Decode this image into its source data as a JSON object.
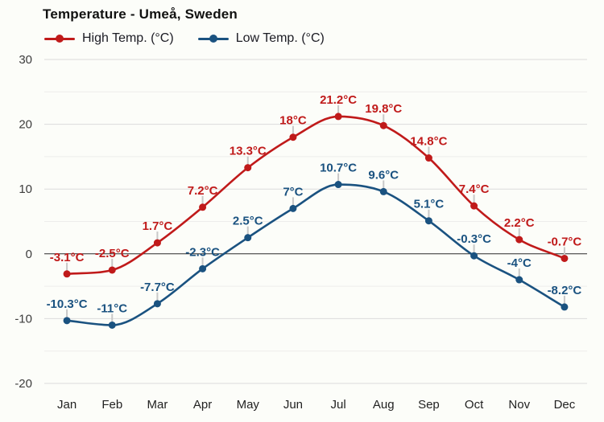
{
  "chart_data": {
    "type": "line",
    "title": "Temperature - Umeå, Sweden",
    "categories": [
      "Jan",
      "Feb",
      "Mar",
      "Apr",
      "May",
      "Jun",
      "Jul",
      "Aug",
      "Sep",
      "Oct",
      "Nov",
      "Dec"
    ],
    "series": [
      {
        "name": "High Temp. (°C)",
        "color": "#c01a1a",
        "values": [
          -3.1,
          -2.5,
          1.7,
          7.2,
          13.3,
          18,
          21.2,
          19.8,
          14.8,
          7.4,
          2.2,
          -0.7
        ],
        "labels": [
          "-3.1°C",
          "-2.5°C",
          "1.7°C",
          "7.2°C",
          "13.3°C",
          "18°C",
          "21.2°C",
          "19.8°C",
          "14.8°C",
          "7.4°C",
          "2.2°C",
          "-0.7°C"
        ]
      },
      {
        "name": "Low Temp. (°C)",
        "color": "#1a5280",
        "values": [
          -10.3,
          -11,
          -7.7,
          -2.3,
          2.5,
          7,
          10.7,
          9.6,
          5.1,
          -0.3,
          -4,
          -8.2
        ],
        "labels": [
          "-10.3°C",
          "-11°C",
          "-7.7°C",
          "-2.3°C",
          "2.5°C",
          "7°C",
          "10.7°C",
          "9.6°C",
          "5.1°C",
          "-0.3°C",
          "-4°C",
          "-8.2°C"
        ]
      }
    ],
    "xlabel": "",
    "ylabel": "",
    "ylim": [
      -20,
      30
    ],
    "y_ticks": [
      30,
      20,
      10,
      0,
      -10,
      -20
    ],
    "y_tick_labels": [
      "30",
      "20",
      "10",
      "0",
      "-10",
      "-20"
    ],
    "y_minor_step": 5,
    "grid": true,
    "zero_line": true,
    "legend_position": "top-left",
    "colors": {
      "major_grid": "#dcdcdc",
      "minor_grid": "#ededeb",
      "zero_line": "#2b2b2b",
      "label_stem": "#c8c8c8",
      "y_tick_text": "#3d3d3d",
      "x_tick_text": "#222222",
      "title_text": "#111111"
    }
  }
}
